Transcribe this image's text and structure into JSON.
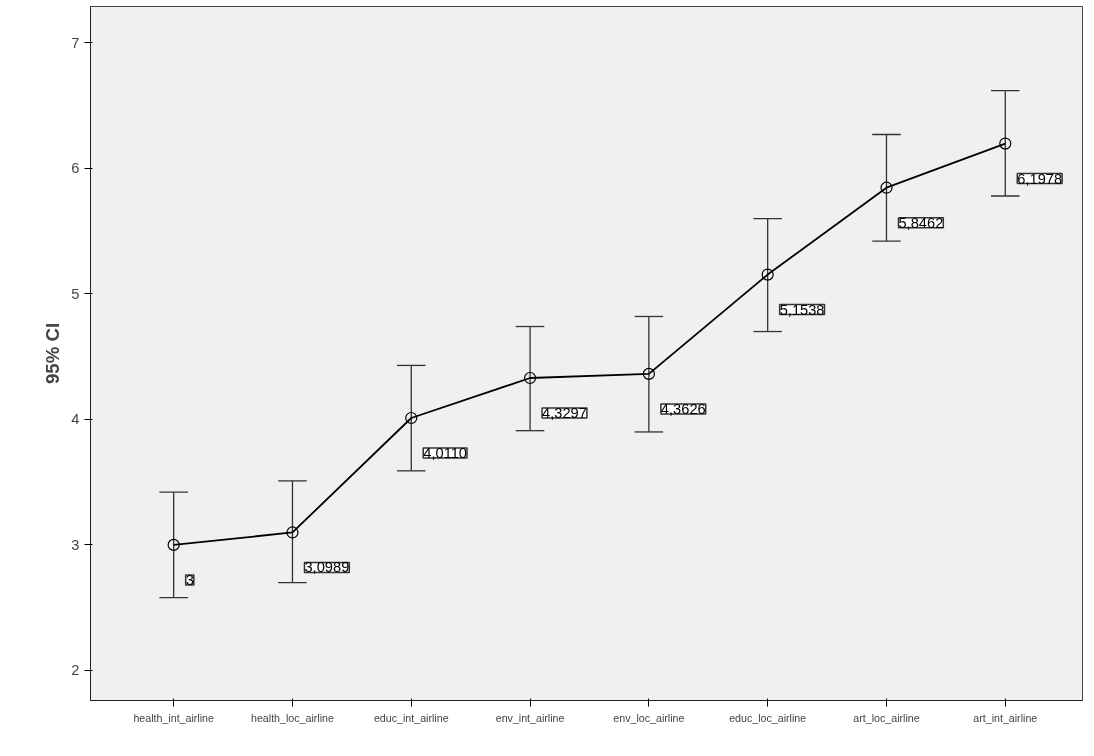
{
  "chart_data": {
    "type": "line",
    "ylabel": "95% CI",
    "categories": [
      "health_int_airline",
      "health_loc_airline",
      "educ_int_airline",
      "env_int_airline",
      "env_loc_airline",
      "educ_loc_airline",
      "art_loc_airline",
      "art_int_airline"
    ],
    "series": [
      {
        "color": "#000000",
        "values": [
          3,
          3.0989,
          4.011,
          4.3297,
          4.3626,
          5.1538,
          5.8462,
          6.1978
        ],
        "errors": [
          [
            2.58,
            3.42
          ],
          [
            2.7,
            3.51
          ],
          [
            3.59,
            4.43
          ],
          [
            3.91,
            4.74
          ],
          [
            3.9,
            4.82
          ],
          [
            4.7,
            5.6
          ],
          [
            5.42,
            6.27
          ],
          [
            5.78,
            6.62
          ]
        ],
        "value_labels": [
          "3",
          "3,0989",
          "4,0110",
          "4,3297",
          "4,3626",
          "5,1538",
          "5,8462",
          "6,1978"
        ]
      }
    ],
    "ylim": [
      1.76,
      7.29
    ],
    "yticks": [
      2,
      3,
      4,
      5,
      6,
      7
    ],
    "grid": false,
    "marker": "circle",
    "line_style": "solid"
  }
}
